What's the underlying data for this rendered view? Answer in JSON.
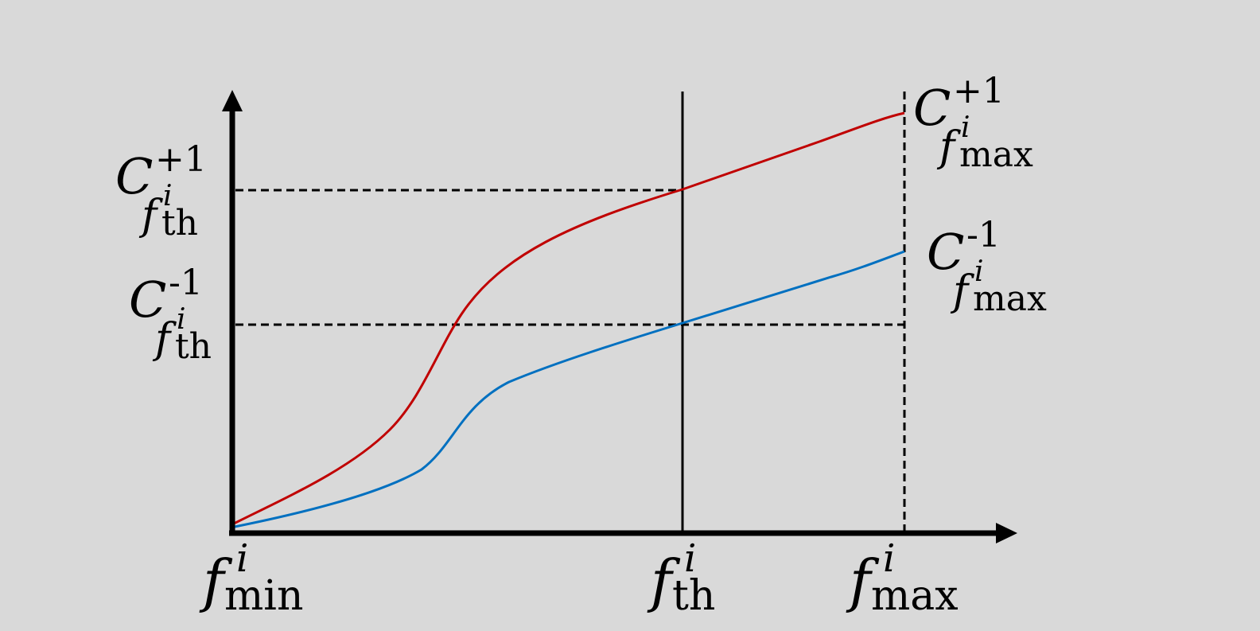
{
  "x_labels": [
    {
      "base": "f",
      "sup": "i",
      "sub": "min"
    },
    {
      "base": "f",
      "sup": "i",
      "sub": "th"
    },
    {
      "base": "f",
      "sup": "i",
      "sub": "max"
    }
  ],
  "y_labels": [
    {
      "base": "C",
      "sup": "+1",
      "sub": {
        "base": "f",
        "sup": "i",
        "sub": "th"
      }
    },
    {
      "base": "C",
      "sup": "-1",
      "sub": {
        "base": "f",
        "sup": "i",
        "sub": "th"
      }
    }
  ],
  "curve_labels": [
    {
      "base": "C",
      "sup": "+1",
      "sub": {
        "base": "f",
        "sup": "i",
        "sub": "max"
      }
    },
    {
      "base": "C",
      "sup": "-1",
      "sub": {
        "base": "f",
        "sup": "i",
        "sub": "max"
      }
    }
  ]
}
